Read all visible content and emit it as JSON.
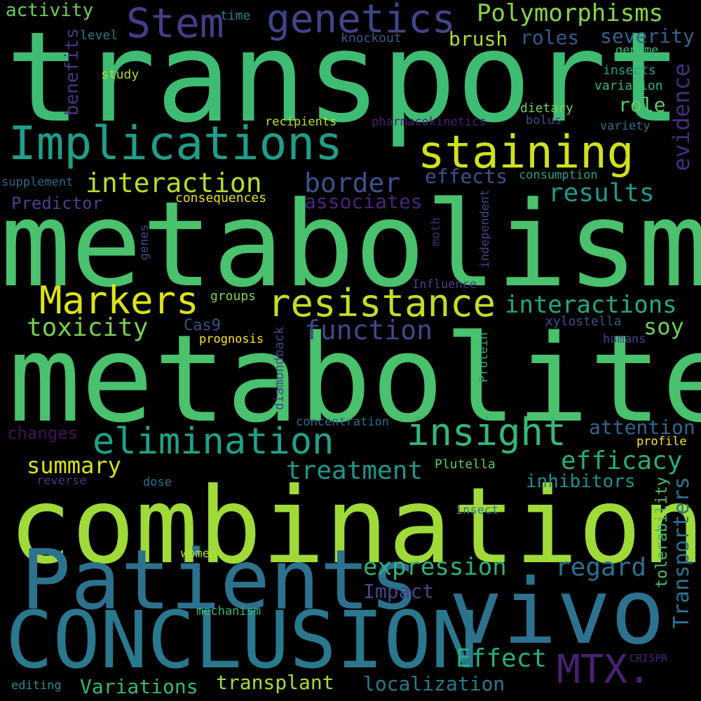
{
  "words": [
    {
      "text": "transport",
      "color": "#3fbc73"
    },
    {
      "text": "metabolism",
      "color": "#4ac16d"
    },
    {
      "text": "metabolite",
      "color": "#4ac16d"
    },
    {
      "text": "combination",
      "color": "#a0da39"
    },
    {
      "text": "Patients",
      "color": "#2c728e"
    },
    {
      "text": "CONCLUSION",
      "color": "#2a788e"
    },
    {
      "text": "vivo",
      "color": "#2c728e"
    },
    {
      "text": "Implications",
      "color": "#1f9e89"
    },
    {
      "text": "staining",
      "color": "#d0e11c"
    },
    {
      "text": "genetics",
      "color": "#414487"
    },
    {
      "text": "Stem",
      "color": "#433e85"
    },
    {
      "text": "Polymorphisms",
      "color": "#86d549"
    },
    {
      "text": "Markers",
      "color": "#dde318"
    },
    {
      "text": "resistance",
      "color": "#c0df25"
    },
    {
      "text": "insight",
      "color": "#35b779"
    },
    {
      "text": "elimination",
      "color": "#1fa188"
    },
    {
      "text": "interaction",
      "color": "#b5de2b"
    },
    {
      "text": "interactions",
      "color": "#22a884"
    },
    {
      "text": "toxicity",
      "color": "#7ad151"
    },
    {
      "text": "function",
      "color": "#3e4989"
    },
    {
      "text": "border",
      "color": "#3b528b"
    },
    {
      "text": "results",
      "color": "#1f988b"
    },
    {
      "text": "effects",
      "color": "#3b528b"
    },
    {
      "text": "associates",
      "color": "#482677"
    },
    {
      "text": "summary",
      "color": "#d8e219"
    },
    {
      "text": "treatment",
      "color": "#1f968b"
    },
    {
      "text": "efficacy",
      "color": "#26ad81"
    },
    {
      "text": "inhibitors",
      "color": "#21918c"
    },
    {
      "text": "expression",
      "color": "#2db27d"
    },
    {
      "text": "regard",
      "color": "#2d708e"
    },
    {
      "text": "Effect",
      "color": "#27ad81"
    },
    {
      "text": "MTX.",
      "color": "#482173"
    },
    {
      "text": "Impact",
      "color": "#3e4989"
    },
    {
      "text": "transplant",
      "color": "#a8db34"
    },
    {
      "text": "Variations",
      "color": "#35b779"
    },
    {
      "text": "localization",
      "color": "#2a788e"
    },
    {
      "text": "attention",
      "color": "#32658e"
    },
    {
      "text": "soy",
      "color": "#6ccd5a"
    },
    {
      "text": "brush",
      "color": "#b0dd2f"
    },
    {
      "text": "roles",
      "color": "#38598c"
    },
    {
      "text": "severity",
      "color": "#33638d"
    },
    {
      "text": "role",
      "color": "#5ec962"
    },
    {
      "text": "evidence",
      "color": "#472d7b"
    },
    {
      "text": "Transporters",
      "color": "#2c738e"
    },
    {
      "text": "tolerability",
      "color": "#46c06f"
    },
    {
      "text": "activity",
      "color": "#6ece58"
    },
    {
      "text": "benefits",
      "color": "#453882"
    },
    {
      "text": "time",
      "color": "#277f8e"
    },
    {
      "text": "level",
      "color": "#2a788e"
    },
    {
      "text": "study",
      "color": "#aadc32"
    },
    {
      "text": "knockout",
      "color": "#38598c"
    },
    {
      "text": "genome",
      "color": "#3dbc74"
    },
    {
      "text": "insects",
      "color": "#1fa187"
    },
    {
      "text": "variation",
      "color": "#35b779"
    },
    {
      "text": "dietary",
      "color": "#75d054"
    },
    {
      "text": "bolus",
      "color": "#3e4a89"
    },
    {
      "text": "variety",
      "color": "#2d708e"
    },
    {
      "text": "recipients",
      "color": "#c2df23"
    },
    {
      "text": "pharmacokinetics",
      "color": "#481f70"
    },
    {
      "text": "consumption",
      "color": "#1fa188"
    },
    {
      "text": "supplement",
      "color": "#31688e"
    },
    {
      "text": "Predictor",
      "color": "#404387"
    },
    {
      "text": "consequences",
      "color": "#e5e419"
    },
    {
      "text": "genes",
      "color": "#3e4989"
    },
    {
      "text": "moth",
      "color": "#482475"
    },
    {
      "text": "independent",
      "color": "#3f4788"
    },
    {
      "text": "Influence",
      "color": "#433e85"
    },
    {
      "text": "groups",
      "color": "#84d44b"
    },
    {
      "text": "Cas9",
      "color": "#3b528b"
    },
    {
      "text": "xylostella",
      "color": "#3b528b"
    },
    {
      "text": "prognosis",
      "color": "#fde725"
    },
    {
      "text": "humans",
      "color": "#3e4989"
    },
    {
      "text": "diamondback",
      "color": "#3e4989"
    },
    {
      "text": "Protein",
      "color": "#2ab07f"
    },
    {
      "text": "changes",
      "color": "#440f56"
    },
    {
      "text": "concentration",
      "color": "#2e6b8e"
    },
    {
      "text": "profile",
      "color": "#fde725"
    },
    {
      "text": "Plutella",
      "color": "#5cc863"
    },
    {
      "text": "reverse",
      "color": "#443983"
    },
    {
      "text": "dose",
      "color": "#2c728e"
    },
    {
      "text": "insect",
      "color": "#2a788e"
    },
    {
      "text": "women",
      "color": "#b8de29"
    },
    {
      "text": "mechanism",
      "color": "#35b779"
    },
    {
      "text": "CRISPR",
      "color": "#482173"
    },
    {
      "text": "editing",
      "color": "#21918c"
    }
  ]
}
